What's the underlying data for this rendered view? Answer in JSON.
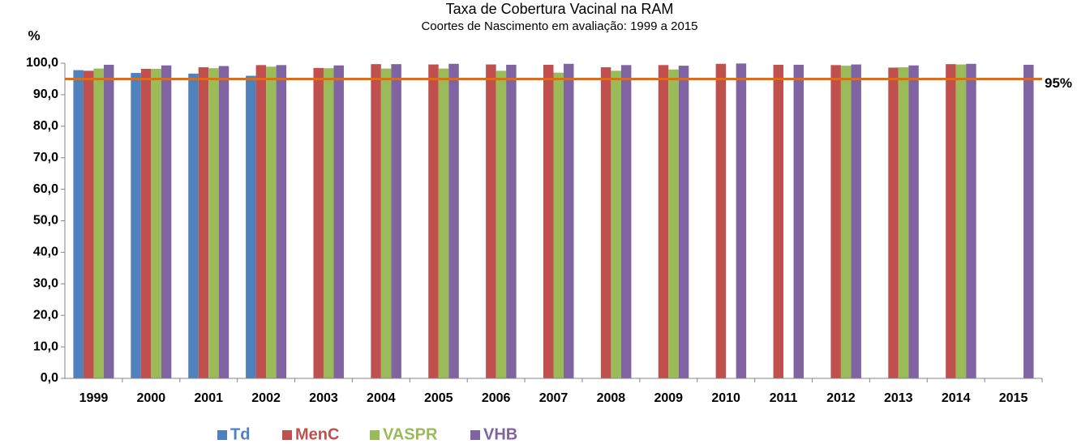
{
  "chart_data": {
    "type": "bar",
    "title": "Taxa de Cobertura Vacinal na RAM",
    "subtitle": "Coortes de Nascimento em avaliação: 1999 a 2015",
    "y_axis_label": "%",
    "categories": [
      "1999",
      "2000",
      "2001",
      "2002",
      "2003",
      "2004",
      "2005",
      "2006",
      "2007",
      "2008",
      "2009",
      "2010",
      "2011",
      "2012",
      "2013",
      "2014",
      "2015"
    ],
    "series": [
      {
        "name": "Td",
        "color": "#4f81bd",
        "values": [
          97.8,
          96.9,
          96.7,
          96.0,
          null,
          null,
          null,
          null,
          null,
          null,
          null,
          null,
          null,
          null,
          null,
          null,
          null
        ]
      },
      {
        "name": "MenC",
        "color": "#c0504d",
        "values": [
          97.6,
          98.2,
          98.7,
          99.4,
          98.5,
          99.7,
          99.6,
          99.6,
          99.5,
          98.7,
          99.4,
          99.8,
          99.5,
          99.4,
          98.6,
          99.7,
          null
        ]
      },
      {
        "name": "VASPR",
        "color": "#9bbb59",
        "values": [
          98.3,
          98.2,
          98.4,
          98.9,
          98.4,
          98.3,
          98.3,
          97.6,
          97.0,
          97.6,
          98.0,
          null,
          null,
          99.2,
          98.7,
          99.6,
          null
        ]
      },
      {
        "name": "VHB",
        "color": "#8064a2",
        "values": [
          99.5,
          99.3,
          99.1,
          99.4,
          99.3,
          99.7,
          99.8,
          99.5,
          99.8,
          99.4,
          99.2,
          99.9,
          99.5,
          99.6,
          99.3,
          99.8,
          99.5
        ]
      }
    ],
    "ylim": [
      0,
      100
    ],
    "yticks": [
      {
        "value": 0,
        "label": "0,0"
      },
      {
        "value": 10,
        "label": "10,0"
      },
      {
        "value": 20,
        "label": "20,0"
      },
      {
        "value": 30,
        "label": "30,0"
      },
      {
        "value": 40,
        "label": "40,0"
      },
      {
        "value": 50,
        "label": "50,0"
      },
      {
        "value": 60,
        "label": "60,0"
      },
      {
        "value": 70,
        "label": "70,0"
      },
      {
        "value": 80,
        "label": "80,0"
      },
      {
        "value": 90,
        "label": "90,0"
      },
      {
        "value": 100,
        "label": "100,0"
      }
    ],
    "reference_line": {
      "value": 95,
      "label": "95%",
      "color": "#e46c0a"
    },
    "legend": "bottom",
    "grid": false
  }
}
